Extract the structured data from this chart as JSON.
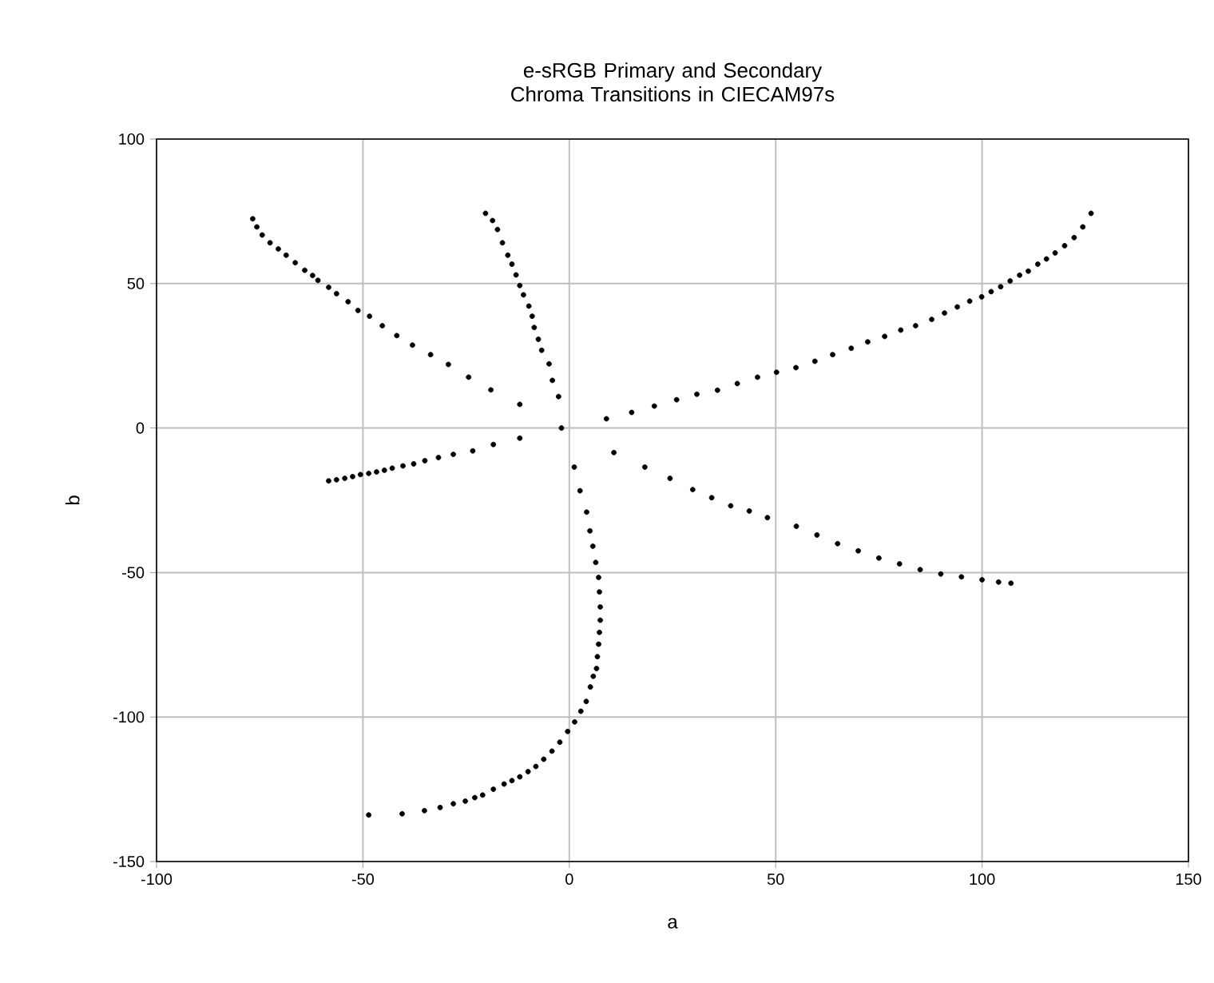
{
  "chart_data": {
    "type": "scatter",
    "title": "e-sRGB Primary and Secondary Chroma Transitions in CIECAM97s",
    "xlabel": "a",
    "ylabel": "b",
    "xlim": [
      -100,
      150
    ],
    "ylim": [
      -150,
      100
    ],
    "xticks": [
      -100,
      -50,
      0,
      50,
      100,
      150
    ],
    "yticks": [
      -150,
      -100,
      -50,
      0,
      50,
      100
    ],
    "grid": true,
    "marker": "circle",
    "series": [
      {
        "color": "#000000",
        "x": [
          -1.9,
          -12.0,
          -19.0,
          -24.4,
          -29.3,
          -33.6,
          -38.0,
          -41.8,
          -45.3,
          -48.4,
          -51.2,
          -53.6,
          -56.4,
          -58.3,
          -60.9,
          -62.2,
          -64.1,
          -66.4,
          -68.6,
          -70.5,
          -72.5,
          -74.4,
          -75.7,
          -76.7
        ],
        "values": [
          0,
          8.2,
          13.2,
          17.6,
          22.0,
          25.4,
          28.7,
          32.0,
          35.4,
          38.7,
          40.7,
          43.7,
          46.5,
          48.7,
          51.1,
          52.8,
          54.6,
          57.2,
          59.8,
          62.0,
          64.1,
          66.8,
          69.6,
          72.4
        ]
      },
      {
        "color": "#000000",
        "x": [
          -2.6,
          -4.1,
          -4.9,
          -6.7,
          -7.5,
          -8.5,
          -9.0,
          -9.8,
          -11.1,
          -12.0,
          -12.9,
          -13.9,
          -14.9,
          -16.2,
          -17.4,
          -18.6,
          -20.3
        ],
        "values": [
          10.9,
          16.5,
          22.2,
          26.9,
          30.7,
          34.8,
          38.7,
          42.2,
          46.1,
          49.3,
          53.0,
          56.7,
          59.8,
          64.1,
          68.7,
          71.8,
          74.3
        ]
      },
      {
        "color": "#000000",
        "x": [
          9.0,
          15.1,
          20.6,
          26.0,
          30.9,
          35.9,
          40.7,
          45.6,
          50.2,
          54.9,
          59.5,
          63.8,
          68.3,
          72.3,
          76.4,
          80.3,
          83.9,
          87.8,
          90.9,
          94.0,
          97.0,
          99.9,
          102.2,
          104.5,
          106.8,
          109.1,
          111.2,
          113.5,
          115.6,
          117.7,
          120.0,
          122.3,
          124.4,
          126.4
        ],
        "values": [
          3.2,
          5.4,
          7.6,
          9.8,
          11.7,
          13.1,
          15.4,
          17.6,
          19.3,
          20.9,
          23.1,
          25.4,
          27.6,
          29.8,
          31.7,
          33.9,
          35.4,
          37.6,
          39.8,
          41.9,
          43.9,
          45.4,
          47.2,
          48.9,
          50.9,
          52.9,
          54.3,
          56.7,
          58.5,
          60.6,
          63.1,
          65.9,
          69.6,
          74.3
        ]
      },
      {
        "color": "#000000",
        "x": [
          -12.0,
          -18.4,
          -23.4,
          -28.1,
          -31.7,
          -35.0,
          -37.7,
          -40.3,
          -42.9,
          -44.8,
          -46.7,
          -48.6,
          -50.6,
          -52.5,
          -54.4,
          -56.4,
          -58.3
        ],
        "values": [
          -3.5,
          -5.7,
          -7.9,
          -9.1,
          -10.2,
          -11.3,
          -12.4,
          -13.1,
          -13.9,
          -14.6,
          -15.2,
          -15.7,
          -16.1,
          -16.8,
          -17.4,
          -17.9,
          -18.3
        ]
      },
      {
        "color": "#000000",
        "x": [
          1.2,
          2.6,
          4.2,
          5.0,
          5.7,
          6.4,
          7.1,
          7.3,
          7.5,
          7.5,
          7.3,
          7.1,
          6.8,
          6.6,
          5.8,
          5.1,
          4.1,
          2.8,
          1.3,
          -0.4,
          -2.3,
          -4.2,
          -6.2,
          -8.1,
          -10.0,
          -12.0,
          -13.9,
          -15.8,
          -18.4,
          -21.0,
          -22.9,
          -25.2,
          -28.1,
          -31.3,
          -35.1,
          -40.5,
          -48.6
        ],
        "values": [
          -13.5,
          -21.7,
          -29.1,
          -35.6,
          -40.9,
          -46.5,
          -51.7,
          -56.7,
          -61.9,
          -66.5,
          -70.7,
          -74.8,
          -79.1,
          -83.2,
          -85.9,
          -89.6,
          -94.6,
          -98.0,
          -101.7,
          -105.0,
          -108.7,
          -111.8,
          -114.6,
          -117.1,
          -118.9,
          -120.7,
          -122.0,
          -123.2,
          -125.0,
          -127.0,
          -127.9,
          -129.1,
          -130.0,
          -131.3,
          -132.4,
          -133.5,
          -133.9
        ]
      },
      {
        "color": "#000000",
        "x": [
          10.8,
          18.3,
          24.4,
          29.9,
          34.5,
          39.1,
          43.6,
          48,
          55,
          60,
          65,
          70,
          75,
          80,
          85,
          90,
          95,
          100,
          104,
          107
        ],
        "values": [
          -8.5,
          -13.5,
          -17.4,
          -21.3,
          -24.1,
          -26.9,
          -28.7,
          -31,
          -34,
          -37,
          -40,
          -42.5,
          -45,
          -47,
          -49,
          -50.5,
          -51.5,
          -52.5,
          -53.3,
          -53.7
        ]
      }
    ]
  }
}
